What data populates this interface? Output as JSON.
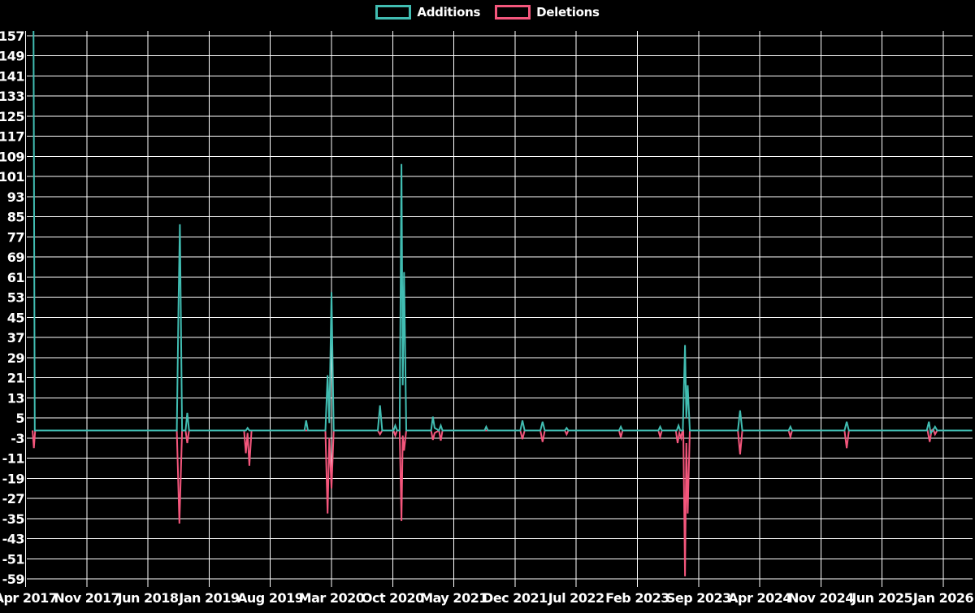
{
  "legend": {
    "additions_label": "Additions",
    "deletions_label": "Deletions"
  },
  "colors": {
    "background": "#000000",
    "grid": "#ffffff",
    "text": "#ffffff",
    "additions": "#41bdb2",
    "deletions": "#f4567c"
  },
  "chart_data": {
    "type": "line",
    "title": "",
    "xlabel": "",
    "ylabel": "",
    "grid": true,
    "legend_position": "top-center",
    "legend_entries": [
      "Additions",
      "Deletions"
    ],
    "x_unit": "months since Apr 2017",
    "months_per_x_tick": 7,
    "x_tick_labels": [
      "Apr 2017",
      "Nov 2017",
      "Jun 2018",
      "Jan 2019",
      "Aug 2019",
      "Mar 2020",
      "Oct 2020",
      "May 2021",
      "Dec 2021",
      "Jul 2022",
      "Feb 2023",
      "Sep 2023",
      "Apr 2024",
      "Nov 2024",
      "Jun 2025",
      "Jan 2026"
    ],
    "y_ticks": [
      157,
      149,
      141,
      133,
      125,
      117,
      109,
      101,
      93,
      85,
      77,
      69,
      61,
      53,
      45,
      37,
      29,
      21,
      13,
      5,
      -3,
      -11,
      -19,
      -27,
      -35,
      -43,
      -51,
      -59
    ],
    "ylim": [
      -59,
      157
    ],
    "x_domain": [
      0,
      108.3
    ],
    "series": [
      {
        "name": "Additions",
        "color": "#41bdb2",
        "points": [
          [
            0.9,
            165
          ],
          [
            1.05,
            0
          ],
          [
            17.3,
            0
          ],
          [
            17.5,
            52
          ],
          [
            17.65,
            82
          ],
          [
            17.9,
            0
          ],
          [
            18.3,
            0
          ],
          [
            18.5,
            7
          ],
          [
            18.7,
            0
          ],
          [
            25.2,
            0
          ],
          [
            25.4,
            1
          ],
          [
            25.6,
            0
          ],
          [
            31.9,
            0
          ],
          [
            32.1,
            4
          ],
          [
            32.3,
            0
          ],
          [
            34.3,
            0
          ],
          [
            34.55,
            22
          ],
          [
            34.75,
            3
          ],
          [
            35.0,
            55
          ],
          [
            35.25,
            0
          ],
          [
            40.3,
            0
          ],
          [
            40.55,
            10
          ],
          [
            40.8,
            0
          ],
          [
            42.1,
            0
          ],
          [
            42.3,
            2
          ],
          [
            42.5,
            0
          ],
          [
            42.8,
            0
          ],
          [
            43.0,
            106
          ],
          [
            43.15,
            18
          ],
          [
            43.3,
            63
          ],
          [
            43.55,
            0
          ],
          [
            46.4,
            0
          ],
          [
            46.6,
            5.5
          ],
          [
            46.8,
            1
          ],
          [
            47.3,
            0
          ],
          [
            47.5,
            2
          ],
          [
            47.7,
            0
          ],
          [
            52.5,
            0
          ],
          [
            52.7,
            1.5
          ],
          [
            52.9,
            0
          ],
          [
            56.6,
            0
          ],
          [
            56.85,
            4
          ],
          [
            57.1,
            0
          ],
          [
            58.9,
            0
          ],
          [
            59.15,
            3.5
          ],
          [
            59.4,
            0
          ],
          [
            61.7,
            0
          ],
          [
            61.9,
            1
          ],
          [
            62.1,
            0
          ],
          [
            67.9,
            0
          ],
          [
            68.1,
            1.5
          ],
          [
            68.3,
            0
          ],
          [
            72.4,
            0
          ],
          [
            72.6,
            1.5
          ],
          [
            72.8,
            0
          ],
          [
            74.5,
            0
          ],
          [
            74.7,
            2
          ],
          [
            74.9,
            0
          ],
          [
            75.2,
            0
          ],
          [
            75.45,
            34
          ],
          [
            75.6,
            5
          ],
          [
            75.75,
            18
          ],
          [
            76.0,
            0
          ],
          [
            81.5,
            0
          ],
          [
            81.75,
            8
          ],
          [
            82.0,
            0
          ],
          [
            87.3,
            0
          ],
          [
            87.5,
            1.5
          ],
          [
            87.7,
            0
          ],
          [
            93.7,
            0
          ],
          [
            93.95,
            3.5
          ],
          [
            94.2,
            0
          ],
          [
            103.1,
            0
          ],
          [
            103.35,
            3.5
          ],
          [
            103.55,
            -1
          ],
          [
            103.8,
            0
          ],
          [
            104.05,
            1.5
          ],
          [
            104.3,
            0
          ],
          [
            108.3,
            0
          ]
        ]
      },
      {
        "name": "Deletions",
        "color": "#f4567c",
        "points": [
          [
            0.8,
            0
          ],
          [
            0.95,
            -7
          ],
          [
            1.1,
            0
          ],
          [
            17.3,
            0
          ],
          [
            17.6,
            -37
          ],
          [
            17.9,
            0
          ],
          [
            18.3,
            0
          ],
          [
            18.5,
            -5
          ],
          [
            18.7,
            0
          ],
          [
            25.0,
            0
          ],
          [
            25.2,
            -9
          ],
          [
            25.4,
            -1
          ],
          [
            25.6,
            -14
          ],
          [
            25.85,
            0
          ],
          [
            34.3,
            0
          ],
          [
            34.55,
            -33
          ],
          [
            34.75,
            -3
          ],
          [
            35.0,
            -23
          ],
          [
            35.25,
            0
          ],
          [
            40.3,
            0
          ],
          [
            40.55,
            -1.5
          ],
          [
            40.8,
            0
          ],
          [
            42.1,
            0
          ],
          [
            42.3,
            -2
          ],
          [
            42.5,
            0
          ],
          [
            42.8,
            0
          ],
          [
            43.0,
            -36
          ],
          [
            43.15,
            -2
          ],
          [
            43.3,
            -8
          ],
          [
            43.55,
            0
          ],
          [
            46.4,
            0
          ],
          [
            46.6,
            -3.7
          ],
          [
            46.8,
            -1
          ],
          [
            47.3,
            0
          ],
          [
            47.5,
            -4
          ],
          [
            47.7,
            0
          ],
          [
            56.6,
            0
          ],
          [
            56.85,
            -3.4
          ],
          [
            57.1,
            0
          ],
          [
            58.9,
            0
          ],
          [
            59.15,
            -4.5
          ],
          [
            59.4,
            0
          ],
          [
            61.7,
            0
          ],
          [
            61.9,
            -1.5
          ],
          [
            62.1,
            0
          ],
          [
            67.9,
            0
          ],
          [
            68.1,
            -2.7
          ],
          [
            68.3,
            0
          ],
          [
            72.4,
            0
          ],
          [
            72.6,
            -2.5
          ],
          [
            72.8,
            0
          ],
          [
            74.4,
            0
          ],
          [
            74.6,
            -5
          ],
          [
            74.8,
            -1
          ],
          [
            75.0,
            -3
          ],
          [
            75.15,
            0
          ],
          [
            75.25,
            0
          ],
          [
            75.45,
            -58
          ],
          [
            75.6,
            -5
          ],
          [
            75.75,
            -33
          ],
          [
            76.0,
            0
          ],
          [
            81.5,
            0
          ],
          [
            81.75,
            -9.5
          ],
          [
            82.0,
            0
          ],
          [
            87.3,
            0
          ],
          [
            87.5,
            -2.5
          ],
          [
            87.7,
            0
          ],
          [
            93.7,
            0
          ],
          [
            93.95,
            -7
          ],
          [
            94.2,
            0
          ],
          [
            103.2,
            0
          ],
          [
            103.45,
            -4.5
          ],
          [
            103.65,
            0
          ],
          [
            103.85,
            0.5
          ],
          [
            104.05,
            -1.5
          ],
          [
            104.3,
            0
          ],
          [
            108.3,
            0
          ]
        ]
      }
    ]
  }
}
